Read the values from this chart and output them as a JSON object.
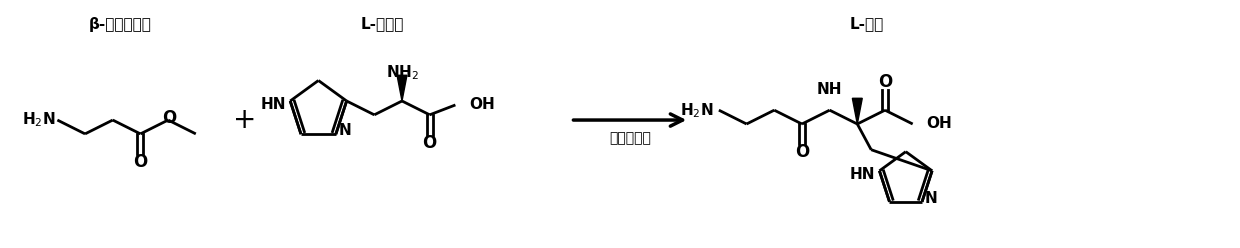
{
  "bg_color": "#ffffff",
  "arrow_label": "重组全细胞",
  "label1": "β-丙氨酸甲酯",
  "label2": "L-组氨酸",
  "label3": "L-肌肽",
  "figsize": [
    12.4,
    2.48
  ],
  "dpi": 100
}
